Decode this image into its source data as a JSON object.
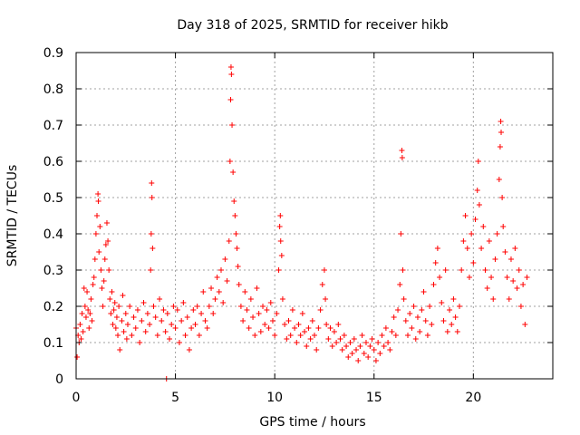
{
  "chart_data": {
    "type": "scatter",
    "title": "Day 318 of 2025, SRMTID for receiver hikb",
    "xlabel": "GPS time / hours",
    "ylabel": "SRMTID / TECUs",
    "xlim": [
      0,
      24
    ],
    "ylim": [
      0,
      0.9
    ],
    "xticks": [
      0,
      5,
      10,
      15,
      20
    ],
    "xtick_labels": [
      "0",
      "5",
      "10",
      "15",
      "20"
    ],
    "yticks": [
      0,
      0.1,
      0.2,
      0.3,
      0.4,
      0.5,
      0.6,
      0.7,
      0.8,
      0.9
    ],
    "ytick_labels": [
      "0",
      "0.1",
      "0.2",
      "0.3",
      "0.4",
      "0.5",
      "0.6",
      "0.7",
      "0.8",
      "0.9"
    ],
    "grid": true,
    "marker": "+",
    "color": "#ff0000",
    "series": [
      {
        "name": "hikb",
        "points": [
          [
            0.0,
            0.14
          ],
          [
            0.05,
            0.06
          ],
          [
            0.1,
            0.12
          ],
          [
            0.15,
            0.1
          ],
          [
            0.2,
            0.15
          ],
          [
            0.25,
            0.11
          ],
          [
            0.3,
            0.18
          ],
          [
            0.35,
            0.13
          ],
          [
            0.4,
            0.25
          ],
          [
            0.45,
            0.2
          ],
          [
            0.5,
            0.17
          ],
          [
            0.55,
            0.24
          ],
          [
            0.6,
            0.19
          ],
          [
            0.65,
            0.14
          ],
          [
            0.7,
            0.18
          ],
          [
            0.75,
            0.22
          ],
          [
            0.8,
            0.16
          ],
          [
            0.85,
            0.26
          ],
          [
            0.9,
            0.28
          ],
          [
            0.95,
            0.33
          ],
          [
            1.0,
            0.4
          ],
          [
            1.05,
            0.45
          ],
          [
            1.1,
            0.51
          ],
          [
            1.12,
            0.49
          ],
          [
            1.15,
            0.35
          ],
          [
            1.2,
            0.42
          ],
          [
            1.25,
            0.3
          ],
          [
            1.3,
            0.25
          ],
          [
            1.35,
            0.2
          ],
          [
            1.4,
            0.27
          ],
          [
            1.45,
            0.33
          ],
          [
            1.5,
            0.37
          ],
          [
            1.55,
            0.43
          ],
          [
            1.6,
            0.38
          ],
          [
            1.65,
            0.3
          ],
          [
            1.7,
            0.22
          ],
          [
            1.75,
            0.18
          ],
          [
            1.8,
            0.24
          ],
          [
            1.85,
            0.15
          ],
          [
            1.9,
            0.19
          ],
          [
            1.95,
            0.21
          ],
          [
            2.0,
            0.14
          ],
          [
            2.05,
            0.17
          ],
          [
            2.1,
            0.12
          ],
          [
            2.15,
            0.2
          ],
          [
            2.2,
            0.08
          ],
          [
            2.3,
            0.16
          ],
          [
            2.35,
            0.23
          ],
          [
            2.4,
            0.13
          ],
          [
            2.5,
            0.18
          ],
          [
            2.55,
            0.11
          ],
          [
            2.6,
            0.15
          ],
          [
            2.7,
            0.2
          ],
          [
            2.8,
            0.12
          ],
          [
            2.9,
            0.17
          ],
          [
            3.0,
            0.14
          ],
          [
            3.1,
            0.19
          ],
          [
            3.2,
            0.1
          ],
          [
            3.3,
            0.16
          ],
          [
            3.4,
            0.21
          ],
          [
            3.5,
            0.13
          ],
          [
            3.6,
            0.18
          ],
          [
            3.7,
            0.15
          ],
          [
            3.75,
            0.3
          ],
          [
            3.78,
            0.4
          ],
          [
            3.8,
            0.54
          ],
          [
            3.82,
            0.5
          ],
          [
            3.85,
            0.36
          ],
          [
            3.9,
            0.2
          ],
          [
            4.0,
            0.17
          ],
          [
            4.1,
            0.12
          ],
          [
            4.2,
            0.22
          ],
          [
            4.3,
            0.16
          ],
          [
            4.4,
            0.19
          ],
          [
            4.5,
            0.13
          ],
          [
            4.55,
            0.0
          ],
          [
            4.6,
            0.18
          ],
          [
            4.7,
            0.11
          ],
          [
            4.8,
            0.15
          ],
          [
            4.9,
            0.2
          ],
          [
            5.0,
            0.14
          ],
          [
            5.1,
            0.19
          ],
          [
            5.2,
            0.1
          ],
          [
            5.3,
            0.16
          ],
          [
            5.4,
            0.21
          ],
          [
            5.5,
            0.12
          ],
          [
            5.6,
            0.17
          ],
          [
            5.7,
            0.08
          ],
          [
            5.8,
            0.14
          ],
          [
            5.9,
            0.19
          ],
          [
            6.0,
            0.15
          ],
          [
            6.1,
            0.2
          ],
          [
            6.2,
            0.12
          ],
          [
            6.3,
            0.18
          ],
          [
            6.4,
            0.24
          ],
          [
            6.5,
            0.16
          ],
          [
            6.6,
            0.14
          ],
          [
            6.7,
            0.2
          ],
          [
            6.8,
            0.25
          ],
          [
            6.9,
            0.18
          ],
          [
            7.0,
            0.22
          ],
          [
            7.1,
            0.28
          ],
          [
            7.2,
            0.24
          ],
          [
            7.3,
            0.3
          ],
          [
            7.4,
            0.21
          ],
          [
            7.5,
            0.33
          ],
          [
            7.6,
            0.27
          ],
          [
            7.7,
            0.38
          ],
          [
            7.75,
            0.6
          ],
          [
            7.78,
            0.77
          ],
          [
            7.8,
            0.86
          ],
          [
            7.82,
            0.84
          ],
          [
            7.85,
            0.7
          ],
          [
            7.9,
            0.57
          ],
          [
            7.95,
            0.49
          ],
          [
            8.0,
            0.45
          ],
          [
            8.05,
            0.4
          ],
          [
            8.1,
            0.36
          ],
          [
            8.15,
            0.31
          ],
          [
            8.2,
            0.26
          ],
          [
            8.3,
            0.2
          ],
          [
            8.4,
            0.16
          ],
          [
            8.5,
            0.24
          ],
          [
            8.6,
            0.19
          ],
          [
            8.7,
            0.14
          ],
          [
            8.8,
            0.22
          ],
          [
            8.9,
            0.17
          ],
          [
            9.0,
            0.12
          ],
          [
            9.1,
            0.25
          ],
          [
            9.2,
            0.18
          ],
          [
            9.3,
            0.13
          ],
          [
            9.4,
            0.2
          ],
          [
            9.5,
            0.15
          ],
          [
            9.6,
            0.19
          ],
          [
            9.7,
            0.14
          ],
          [
            9.8,
            0.21
          ],
          [
            9.9,
            0.16
          ],
          [
            10.0,
            0.12
          ],
          [
            10.1,
            0.18
          ],
          [
            10.2,
            0.3
          ],
          [
            10.25,
            0.42
          ],
          [
            10.28,
            0.45
          ],
          [
            10.3,
            0.38
          ],
          [
            10.35,
            0.34
          ],
          [
            10.4,
            0.22
          ],
          [
            10.5,
            0.15
          ],
          [
            10.6,
            0.11
          ],
          [
            10.7,
            0.16
          ],
          [
            10.8,
            0.12
          ],
          [
            10.9,
            0.19
          ],
          [
            11.0,
            0.14
          ],
          [
            11.1,
            0.1
          ],
          [
            11.2,
            0.15
          ],
          [
            11.3,
            0.12
          ],
          [
            11.4,
            0.18
          ],
          [
            11.5,
            0.13
          ],
          [
            11.6,
            0.09
          ],
          [
            11.7,
            0.14
          ],
          [
            11.8,
            0.11
          ],
          [
            11.9,
            0.16
          ],
          [
            12.0,
            0.12
          ],
          [
            12.1,
            0.08
          ],
          [
            12.2,
            0.14
          ],
          [
            12.3,
            0.19
          ],
          [
            12.4,
            0.26
          ],
          [
            12.5,
            0.3
          ],
          [
            12.55,
            0.22
          ],
          [
            12.6,
            0.15
          ],
          [
            12.7,
            0.11
          ],
          [
            12.8,
            0.14
          ],
          [
            12.9,
            0.09
          ],
          [
            13.0,
            0.13
          ],
          [
            13.1,
            0.1
          ],
          [
            13.2,
            0.15
          ],
          [
            13.3,
            0.11
          ],
          [
            13.4,
            0.08
          ],
          [
            13.5,
            0.12
          ],
          [
            13.6,
            0.09
          ],
          [
            13.7,
            0.06
          ],
          [
            13.8,
            0.1
          ],
          [
            13.9,
            0.07
          ],
          [
            14.0,
            0.11
          ],
          [
            14.1,
            0.08
          ],
          [
            14.2,
            0.05
          ],
          [
            14.3,
            0.09
          ],
          [
            14.4,
            0.12
          ],
          [
            14.5,
            0.07
          ],
          [
            14.6,
            0.1
          ],
          [
            14.7,
            0.06
          ],
          [
            14.8,
            0.09
          ],
          [
            14.9,
            0.11
          ],
          [
            15.0,
            0.08
          ],
          [
            15.1,
            0.05
          ],
          [
            15.2,
            0.1
          ],
          [
            15.3,
            0.07
          ],
          [
            15.4,
            0.12
          ],
          [
            15.5,
            0.09
          ],
          [
            15.6,
            0.14
          ],
          [
            15.7,
            0.1
          ],
          [
            15.8,
            0.08
          ],
          [
            15.9,
            0.13
          ],
          [
            16.0,
            0.17
          ],
          [
            16.1,
            0.12
          ],
          [
            16.2,
            0.19
          ],
          [
            16.3,
            0.26
          ],
          [
            16.35,
            0.4
          ],
          [
            16.4,
            0.63
          ],
          [
            16.42,
            0.61
          ],
          [
            16.45,
            0.3
          ],
          [
            16.5,
            0.22
          ],
          [
            16.6,
            0.16
          ],
          [
            16.7,
            0.12
          ],
          [
            16.8,
            0.18
          ],
          [
            16.9,
            0.14
          ],
          [
            17.0,
            0.2
          ],
          [
            17.1,
            0.11
          ],
          [
            17.2,
            0.17
          ],
          [
            17.3,
            0.13
          ],
          [
            17.4,
            0.19
          ],
          [
            17.5,
            0.24
          ],
          [
            17.6,
            0.16
          ],
          [
            17.7,
            0.12
          ],
          [
            17.8,
            0.2
          ],
          [
            17.9,
            0.15
          ],
          [
            18.0,
            0.26
          ],
          [
            18.1,
            0.32
          ],
          [
            18.2,
            0.36
          ],
          [
            18.3,
            0.28
          ],
          [
            18.4,
            0.21
          ],
          [
            18.5,
            0.16
          ],
          [
            18.6,
            0.3
          ],
          [
            18.7,
            0.13
          ],
          [
            18.8,
            0.19
          ],
          [
            18.9,
            0.15
          ],
          [
            19.0,
            0.22
          ],
          [
            19.1,
            0.17
          ],
          [
            19.2,
            0.13
          ],
          [
            19.3,
            0.2
          ],
          [
            19.4,
            0.3
          ],
          [
            19.5,
            0.38
          ],
          [
            19.6,
            0.45
          ],
          [
            19.7,
            0.36
          ],
          [
            19.8,
            0.28
          ],
          [
            19.9,
            0.4
          ],
          [
            20.0,
            0.32
          ],
          [
            20.1,
            0.44
          ],
          [
            20.2,
            0.52
          ],
          [
            20.25,
            0.6
          ],
          [
            20.3,
            0.48
          ],
          [
            20.4,
            0.36
          ],
          [
            20.5,
            0.42
          ],
          [
            20.6,
            0.3
          ],
          [
            20.7,
            0.25
          ],
          [
            20.8,
            0.38
          ],
          [
            20.9,
            0.28
          ],
          [
            21.0,
            0.22
          ],
          [
            21.1,
            0.33
          ],
          [
            21.2,
            0.4
          ],
          [
            21.3,
            0.55
          ],
          [
            21.35,
            0.64
          ],
          [
            21.38,
            0.71
          ],
          [
            21.4,
            0.68
          ],
          [
            21.45,
            0.5
          ],
          [
            21.5,
            0.42
          ],
          [
            21.6,
            0.35
          ],
          [
            21.7,
            0.28
          ],
          [
            21.8,
            0.22
          ],
          [
            21.9,
            0.33
          ],
          [
            22.0,
            0.27
          ],
          [
            22.1,
            0.36
          ],
          [
            22.2,
            0.25
          ],
          [
            22.3,
            0.3
          ],
          [
            22.4,
            0.2
          ],
          [
            22.5,
            0.26
          ],
          [
            22.6,
            0.15
          ],
          [
            22.7,
            0.28
          ]
        ]
      }
    ]
  }
}
